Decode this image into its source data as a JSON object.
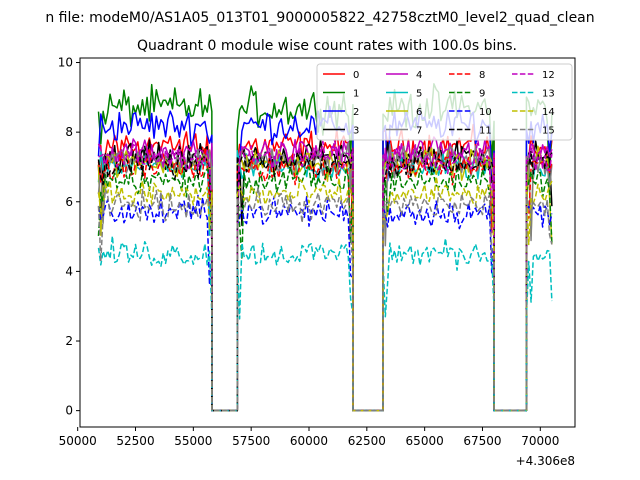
{
  "chart_data": {
    "type": "line",
    "suptitle": "n file: modeM0/AS1A05_013T01_9000005822_42758cztM0_level2_quad_clean",
    "title": "Quadrant 0 module wise count rates with 100.0s bins.",
    "xlabel": "",
    "ylabel": "",
    "x_offset_label": "+4.306e8",
    "xlim": [
      50100,
      71500
    ],
    "ylim": [
      -0.47,
      10.13
    ],
    "xticks": [
      50000,
      52500,
      55000,
      57500,
      60000,
      62500,
      65000,
      67500,
      70000
    ],
    "xtick_labels": [
      "50000",
      "52500",
      "55000",
      "57500",
      "60000",
      "62500",
      "65000",
      "67500",
      "70000"
    ],
    "yticks": [
      0,
      2,
      4,
      6,
      8,
      10
    ],
    "ytick_labels": [
      "0",
      "2",
      "4",
      "6",
      "8",
      "10"
    ],
    "grid": false,
    "legend_position": "top-right",
    "bin_width": 100,
    "segments": [
      {
        "start": 50900,
        "end": 55800
      },
      {
        "start": 56900,
        "end": 61900
      },
      {
        "start": 63200,
        "end": 68000
      },
      {
        "start": 69400,
        "end": 70500
      }
    ],
    "gaps": [
      {
        "start": 55800,
        "end": 56900
      },
      {
        "start": 61900,
        "end": 63200
      },
      {
        "start": 68000,
        "end": 69400
      }
    ],
    "series": [
      {
        "name": "0",
        "color": "#ff0000",
        "dash": "solid",
        "mean": 7.6,
        "noise": 0.25
      },
      {
        "name": "1",
        "color": "#008000",
        "dash": "solid",
        "mean": 8.7,
        "noise": 0.3
      },
      {
        "name": "2",
        "color": "#0000ff",
        "dash": "solid",
        "mean": 8.2,
        "noise": 0.25
      },
      {
        "name": "3",
        "color": "#000000",
        "dash": "solid",
        "mean": 7.3,
        "noise": 0.22
      },
      {
        "name": "4",
        "color": "#bf00bf",
        "dash": "solid",
        "mean": 7.4,
        "noise": 0.22
      },
      {
        "name": "5",
        "color": "#00bfbf",
        "dash": "solid",
        "mean": 7.0,
        "noise": 0.22
      },
      {
        "name": "6",
        "color": "#bfbf00",
        "dash": "solid",
        "mean": 7.1,
        "noise": 0.22
      },
      {
        "name": "7",
        "color": "#808080",
        "dash": "solid",
        "mean": 7.2,
        "noise": 0.22
      },
      {
        "name": "8",
        "color": "#ff0000",
        "dash": "dashed",
        "mean": 7.0,
        "noise": 0.22
      },
      {
        "name": "9",
        "color": "#008000",
        "dash": "dashed",
        "mean": 6.6,
        "noise": 0.22
      },
      {
        "name": "10",
        "color": "#0000ff",
        "dash": "dashed",
        "mean": 5.7,
        "noise": 0.22
      },
      {
        "name": "11",
        "color": "#000000",
        "dash": "dashed",
        "mean": 7.1,
        "noise": 0.22
      },
      {
        "name": "12",
        "color": "#bf00bf",
        "dash": "dashed",
        "mean": 7.3,
        "noise": 0.22
      },
      {
        "name": "13",
        "color": "#00bfbf",
        "dash": "dashed",
        "mean": 4.5,
        "noise": 0.22
      },
      {
        "name": "14",
        "color": "#bfbf00",
        "dash": "dashed",
        "mean": 6.2,
        "noise": 0.22
      },
      {
        "name": "15",
        "color": "#808080",
        "dash": "dashed",
        "mean": 5.9,
        "noise": 0.22
      }
    ]
  }
}
